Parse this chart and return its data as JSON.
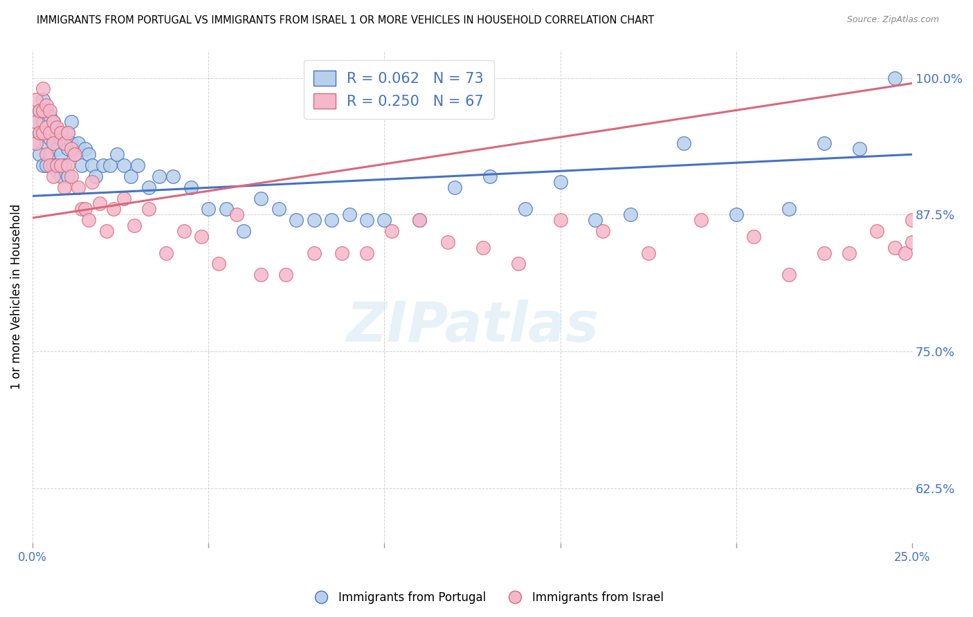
{
  "title": "IMMIGRANTS FROM PORTUGAL VS IMMIGRANTS FROM ISRAEL 1 OR MORE VEHICLES IN HOUSEHOLD CORRELATION CHART",
  "source": "Source: ZipAtlas.com",
  "ylabel": "1 or more Vehicles in Household",
  "xlim": [
    0.0,
    0.25
  ],
  "ylim": [
    0.575,
    1.025
  ],
  "yticks": [
    0.625,
    0.75,
    0.875,
    1.0
  ],
  "ytick_labels": [
    "62.5%",
    "75.0%",
    "87.5%",
    "100.0%"
  ],
  "xticks": [
    0.0,
    0.05,
    0.1,
    0.15,
    0.2,
    0.25
  ],
  "xtick_labels": [
    "0.0%",
    "",
    "",
    "",
    "",
    "25.0%"
  ],
  "portugal_R": 0.062,
  "portugal_N": 73,
  "israel_R": 0.25,
  "israel_N": 67,
  "portugal_color": "#b8d0ea",
  "israel_color": "#f5b8cb",
  "portugal_line_color": "#4472c4",
  "israel_line_color": "#d9687a",
  "background_color": "#ffffff",
  "watermark": "ZIPatlas",
  "portugal_x": [
    0.001,
    0.001,
    0.002,
    0.002,
    0.002,
    0.003,
    0.003,
    0.003,
    0.003,
    0.004,
    0.004,
    0.004,
    0.004,
    0.005,
    0.005,
    0.005,
    0.006,
    0.006,
    0.006,
    0.007,
    0.007,
    0.007,
    0.008,
    0.008,
    0.008,
    0.009,
    0.009,
    0.01,
    0.01,
    0.01,
    0.011,
    0.011,
    0.012,
    0.013,
    0.014,
    0.015,
    0.016,
    0.017,
    0.018,
    0.02,
    0.022,
    0.024,
    0.026,
    0.028,
    0.03,
    0.033,
    0.036,
    0.04,
    0.045,
    0.05,
    0.055,
    0.06,
    0.065,
    0.07,
    0.075,
    0.08,
    0.085,
    0.09,
    0.095,
    0.1,
    0.11,
    0.12,
    0.13,
    0.14,
    0.15,
    0.16,
    0.17,
    0.185,
    0.2,
    0.215,
    0.225,
    0.235,
    0.245
  ],
  "portugal_y": [
    0.96,
    0.94,
    0.97,
    0.95,
    0.93,
    0.98,
    0.96,
    0.95,
    0.92,
    0.97,
    0.95,
    0.94,
    0.92,
    0.965,
    0.945,
    0.93,
    0.96,
    0.94,
    0.92,
    0.95,
    0.935,
    0.915,
    0.945,
    0.93,
    0.91,
    0.94,
    0.92,
    0.95,
    0.935,
    0.91,
    0.96,
    0.94,
    0.93,
    0.94,
    0.92,
    0.935,
    0.93,
    0.92,
    0.91,
    0.92,
    0.92,
    0.93,
    0.92,
    0.91,
    0.92,
    0.9,
    0.91,
    0.91,
    0.9,
    0.88,
    0.88,
    0.86,
    0.89,
    0.88,
    0.87,
    0.87,
    0.87,
    0.875,
    0.87,
    0.87,
    0.87,
    0.9,
    0.91,
    0.88,
    0.905,
    0.87,
    0.875,
    0.94,
    0.875,
    0.88,
    0.94,
    0.935,
    1.0
  ],
  "israel_x": [
    0.001,
    0.001,
    0.001,
    0.002,
    0.002,
    0.003,
    0.003,
    0.003,
    0.004,
    0.004,
    0.004,
    0.005,
    0.005,
    0.005,
    0.006,
    0.006,
    0.006,
    0.007,
    0.007,
    0.008,
    0.008,
    0.009,
    0.009,
    0.01,
    0.01,
    0.011,
    0.011,
    0.012,
    0.013,
    0.014,
    0.015,
    0.016,
    0.017,
    0.019,
    0.021,
    0.023,
    0.026,
    0.029,
    0.033,
    0.038,
    0.043,
    0.048,
    0.053,
    0.058,
    0.065,
    0.072,
    0.08,
    0.088,
    0.095,
    0.102,
    0.11,
    0.118,
    0.128,
    0.138,
    0.15,
    0.162,
    0.175,
    0.19,
    0.205,
    0.215,
    0.225,
    0.232,
    0.24,
    0.245,
    0.248,
    0.25,
    0.25
  ],
  "israel_y": [
    0.98,
    0.96,
    0.94,
    0.97,
    0.95,
    0.99,
    0.97,
    0.95,
    0.975,
    0.955,
    0.93,
    0.97,
    0.95,
    0.92,
    0.96,
    0.94,
    0.91,
    0.955,
    0.92,
    0.95,
    0.92,
    0.94,
    0.9,
    0.95,
    0.92,
    0.935,
    0.91,
    0.93,
    0.9,
    0.88,
    0.88,
    0.87,
    0.905,
    0.885,
    0.86,
    0.88,
    0.89,
    0.865,
    0.88,
    0.84,
    0.86,
    0.855,
    0.83,
    0.875,
    0.82,
    0.82,
    0.84,
    0.84,
    0.84,
    0.86,
    0.87,
    0.85,
    0.845,
    0.83,
    0.87,
    0.86,
    0.84,
    0.87,
    0.855,
    0.82,
    0.84,
    0.84,
    0.86,
    0.845,
    0.84,
    0.87,
    0.85
  ]
}
